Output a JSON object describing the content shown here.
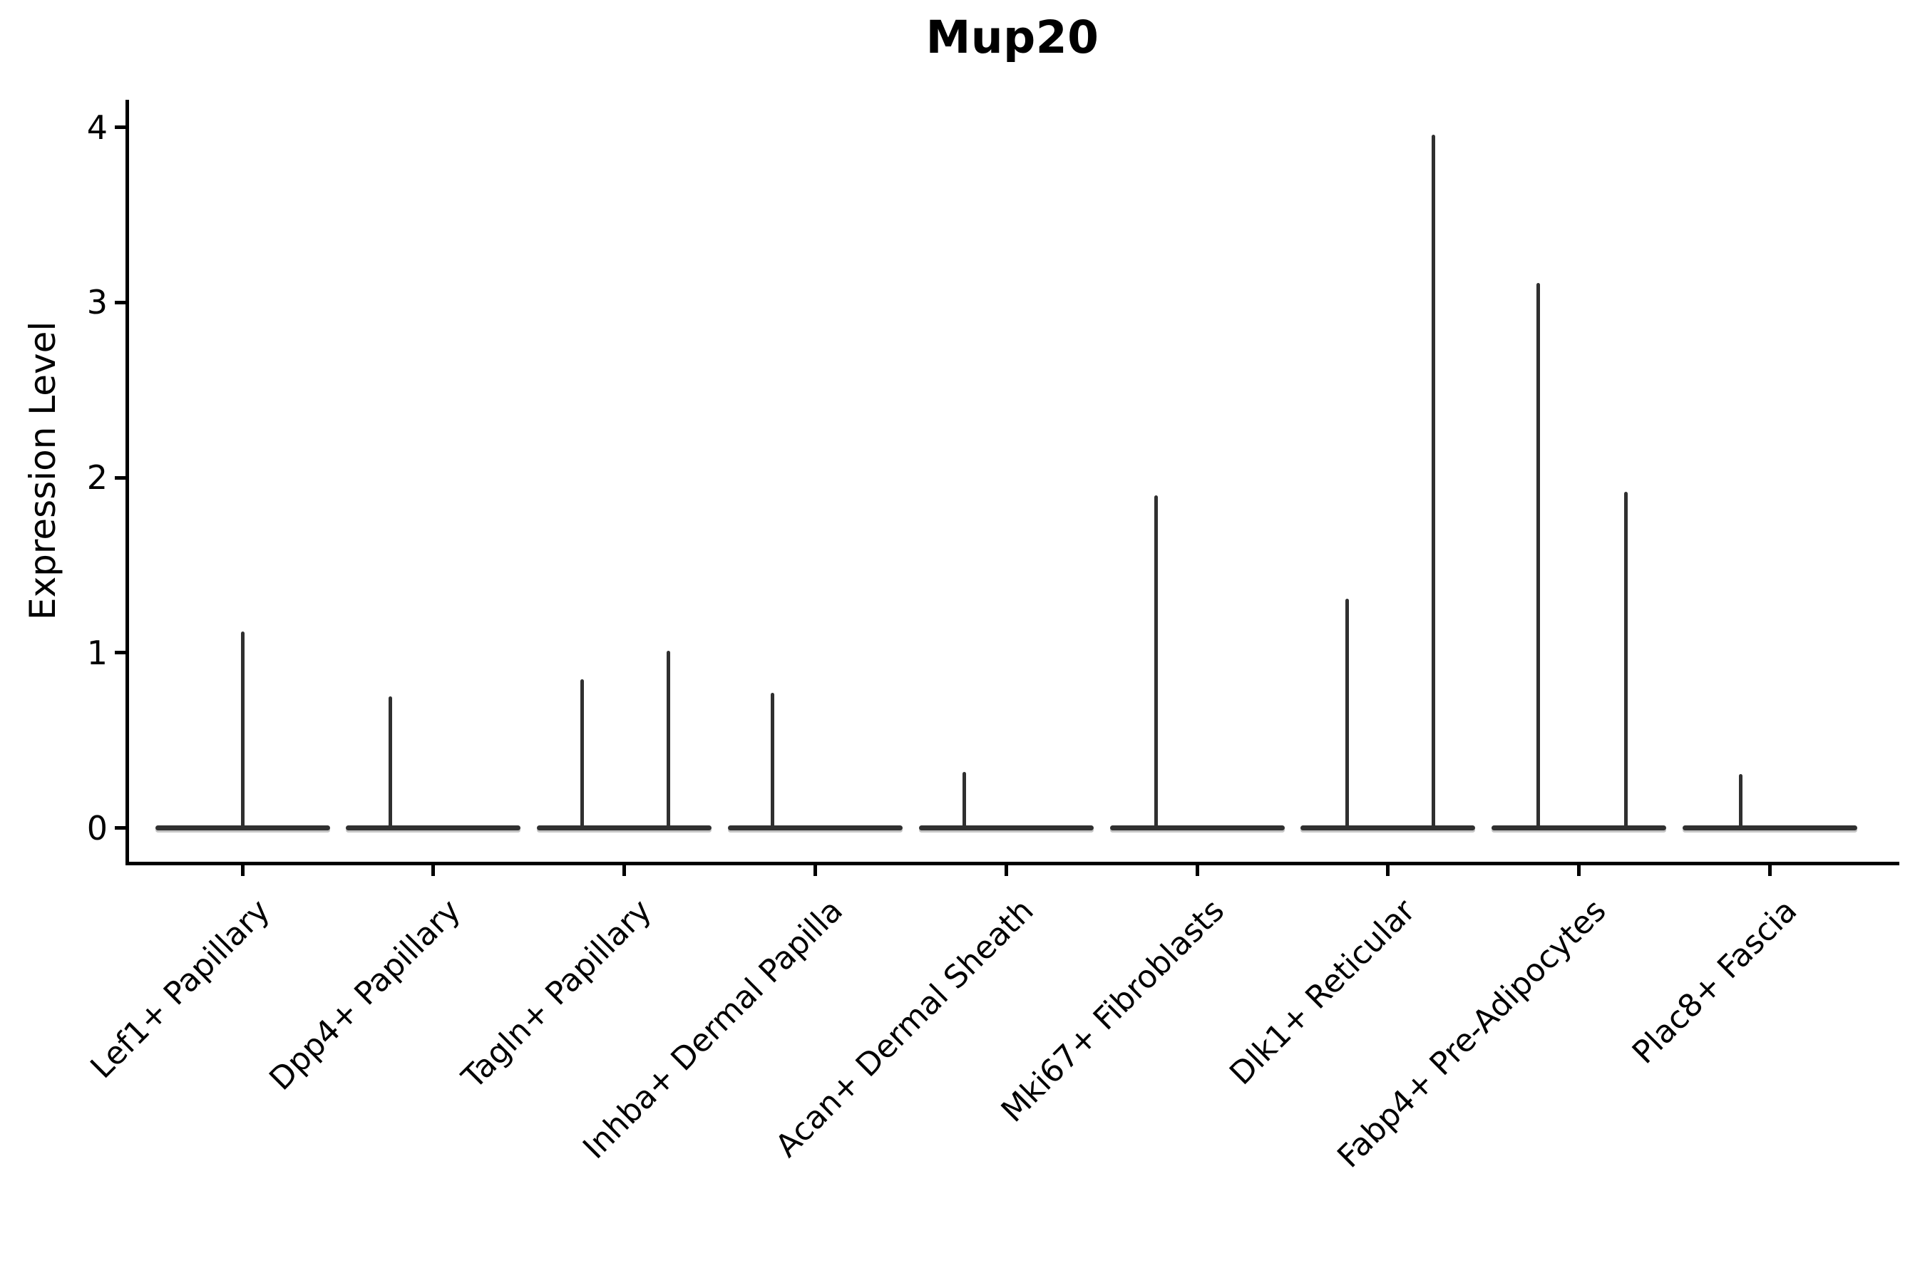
{
  "title": "Mup20",
  "ylabel": "Expression Level",
  "chart_data": {
    "type": "violin",
    "title": "Mup20",
    "xlabel": "",
    "ylabel": "Expression Level",
    "ylim": [
      0,
      4.15
    ],
    "yticks": [
      0,
      1,
      2,
      3,
      4
    ],
    "grid": false,
    "legend": "none",
    "description": "Single-gene expression violin plot; density collapsed at 0 for all clusters (horizontal bar at y=0) with thin vertical tails reaching the maximum expression value of the few expressing cells.",
    "categories": [
      "Lef1+ Papillary",
      "Dpp4+ Papillary",
      "Tagln+ Papillary",
      "Inhba+ Dermal Papilla",
      "Acan+ Dermal Sheath",
      "Mki67+ Fibroblasts",
      "Dlk1+ Reticular",
      "Fabp4+ Pre-Adipocytes",
      "Plac8+ Fascia"
    ],
    "series": [
      {
        "category": "Lef1+ Papillary",
        "baseline": 0,
        "spikes": [
          {
            "offset": 0.0,
            "max": 1.12
          }
        ]
      },
      {
        "category": "Dpp4+ Papillary",
        "baseline": 0,
        "spikes": [
          {
            "offset": -0.224,
            "max": 0.75
          }
        ]
      },
      {
        "category": "Tagln+ Papillary",
        "baseline": 0,
        "spikes": [
          {
            "offset": -0.22,
            "max": 0.85
          },
          {
            "offset": 0.232,
            "max": 1.01
          }
        ]
      },
      {
        "category": "Inhba+ Dermal Papilla",
        "baseline": 0,
        "spikes": [
          {
            "offset": -0.222,
            "max": 0.77
          }
        ]
      },
      {
        "category": "Acan+ Dermal Sheath",
        "baseline": 0,
        "spikes": [
          {
            "offset": -0.219,
            "max": 0.32
          }
        ]
      },
      {
        "category": "Mki67+ Fibroblasts",
        "baseline": 0,
        "spikes": [
          {
            "offset": -0.215,
            "max": 1.9
          }
        ]
      },
      {
        "category": "Dlk1+ Reticular",
        "baseline": 0,
        "spikes": [
          {
            "offset": -0.213,
            "max": 1.31
          },
          {
            "offset": 0.238,
            "max": 3.96
          }
        ]
      },
      {
        "category": "Fabp4+ Pre-Adipocytes",
        "baseline": 0,
        "spikes": [
          {
            "offset": -0.212,
            "max": 3.11
          },
          {
            "offset": 0.246,
            "max": 1.92
          }
        ]
      },
      {
        "category": "Plac8+ Fascia",
        "baseline": 0,
        "spikes": [
          {
            "offset": -0.152,
            "max": 0.31
          }
        ]
      }
    ],
    "violin_color": "#303030",
    "axis_color": "#000000",
    "background_color": "#ffffff"
  }
}
